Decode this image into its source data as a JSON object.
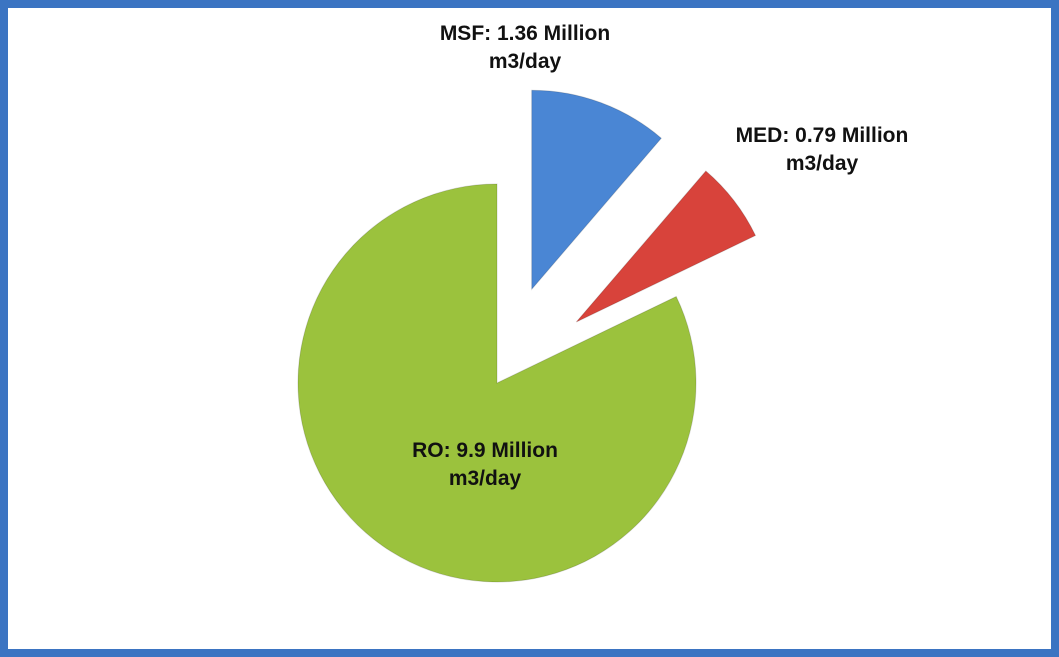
{
  "chart_data": {
    "type": "pie",
    "categories": [
      "MSF",
      "MED",
      "RO"
    ],
    "values": [
      1.36,
      0.79,
      9.9
    ],
    "value_labels": [
      "MSF: 1.36 Million m3/day",
      "MED: 0.79 Million m3/day",
      "RO: 9.9 Million m3/day"
    ],
    "colors": [
      "#4a86d4",
      "#d8433b",
      "#9bc23d"
    ]
  }
}
